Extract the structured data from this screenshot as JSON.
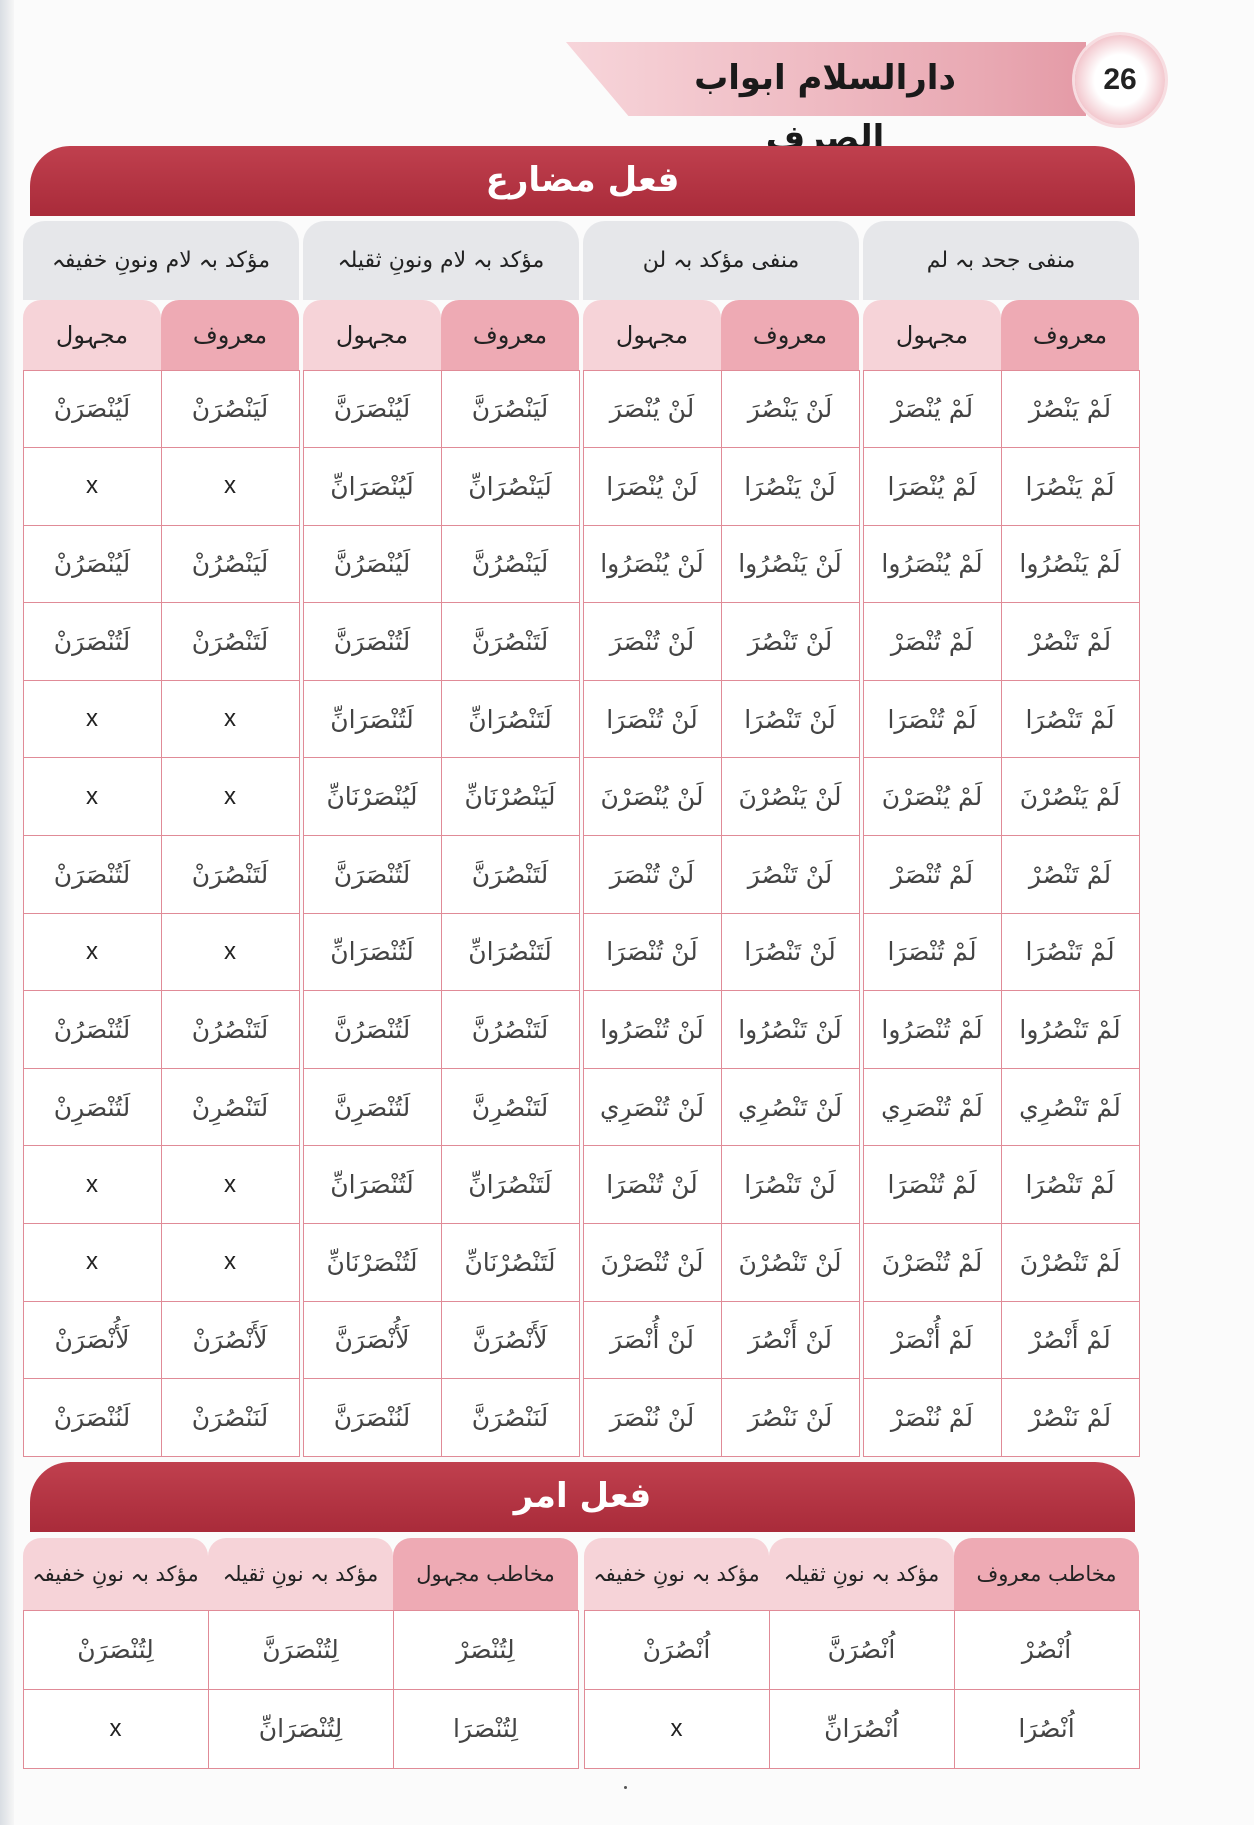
{
  "header": {
    "page_number": "26",
    "book_title": "دارالسلام ابواب الصرف"
  },
  "mudari": {
    "title": "فعل مضارع",
    "groups": [
      {
        "title": "منفی جحد بہ لم",
        "sub": [
          "معروف",
          "مجہول"
        ]
      },
      {
        "title": "منفی مؤکد بہ لن",
        "sub": [
          "معروف",
          "مجہول"
        ]
      },
      {
        "title": "مؤکد بہ لام ونونِ ثقیلہ",
        "sub": [
          "معروف",
          "مجہول"
        ]
      },
      {
        "title": "مؤکد بہ لام ونونِ خفیفہ",
        "sub": [
          "معروف",
          "مجہول"
        ]
      }
    ],
    "rows": [
      [
        "لَمْ يَنْصُرْ",
        "لَمْ يُنْصَرْ",
        "لَنْ يَنْصُرَ",
        "لَنْ يُنْصَرَ",
        "لَيَنْصُرَنَّ",
        "لَيُنْصَرَنَّ",
        "لَيَنْصُرَنْ",
        "لَيُنْصَرَنْ"
      ],
      [
        "لَمْ يَنْصُرَا",
        "لَمْ يُنْصَرَا",
        "لَنْ يَنْصُرَا",
        "لَنْ يُنْصَرَا",
        "لَيَنْصُرَانِّ",
        "لَيُنْصَرَانِّ",
        "x",
        "x"
      ],
      [
        "لَمْ يَنْصُرُوا",
        "لَمْ يُنْصَرُوا",
        "لَنْ يَنْصُرُوا",
        "لَنْ يُنْصَرُوا",
        "لَيَنْصُرُنَّ",
        "لَيُنْصَرُنَّ",
        "لَيَنْصُرُنْ",
        "لَيُنْصَرُنْ"
      ],
      [
        "لَمْ تَنْصُرْ",
        "لَمْ تُنْصَرْ",
        "لَنْ تَنْصُرَ",
        "لَنْ تُنْصَرَ",
        "لَتَنْصُرَنَّ",
        "لَتُنْصَرَنَّ",
        "لَتَنْصُرَنْ",
        "لَتُنْصَرَنْ"
      ],
      [
        "لَمْ تَنْصُرَا",
        "لَمْ تُنْصَرَا",
        "لَنْ تَنْصُرَا",
        "لَنْ تُنْصَرَا",
        "لَتَنْصُرَانِّ",
        "لَتُنْصَرَانِّ",
        "x",
        "x"
      ],
      [
        "لَمْ يَنْصُرْنَ",
        "لَمْ يُنْصَرْنَ",
        "لَنْ يَنْصُرْنَ",
        "لَنْ يُنْصَرْنَ",
        "لَيَنْصُرْنَانِّ",
        "لَيُنْصَرْنَانِّ",
        "x",
        "x"
      ],
      [
        "لَمْ تَنْصُرْ",
        "لَمْ تُنْصَرْ",
        "لَنْ تَنْصُرَ",
        "لَنْ تُنْصَرَ",
        "لَتَنْصُرَنَّ",
        "لَتُنْصَرَنَّ",
        "لَتَنْصُرَنْ",
        "لَتُنْصَرَنْ"
      ],
      [
        "لَمْ تَنْصُرَا",
        "لَمْ تُنْصَرَا",
        "لَنْ تَنْصُرَا",
        "لَنْ تُنْصَرَا",
        "لَتَنْصُرَانِّ",
        "لَتُنْصَرَانِّ",
        "x",
        "x"
      ],
      [
        "لَمْ تَنْصُرُوا",
        "لَمْ تُنْصَرُوا",
        "لَنْ تَنْصُرُوا",
        "لَنْ تُنْصَرُوا",
        "لَتَنْصُرُنَّ",
        "لَتُنْصَرُنَّ",
        "لَتَنْصُرُنْ",
        "لَتُنْصَرُنْ"
      ],
      [
        "لَمْ تَنْصُرِي",
        "لَمْ تُنْصَرِي",
        "لَنْ تَنْصُرِي",
        "لَنْ تُنْصَرِي",
        "لَتَنْصُرِنَّ",
        "لَتُنْصَرِنَّ",
        "لَتَنْصُرِنْ",
        "لَتُنْصَرِنْ"
      ],
      [
        "لَمْ تَنْصُرَا",
        "لَمْ تُنْصَرَا",
        "لَنْ تَنْصُرَا",
        "لَنْ تُنْصَرَا",
        "لَتَنْصُرَانِّ",
        "لَتُنْصَرَانِّ",
        "x",
        "x"
      ],
      [
        "لَمْ تَنْصُرْنَ",
        "لَمْ تُنْصَرْنَ",
        "لَنْ تَنْصُرْنَ",
        "لَنْ تُنْصَرْنَ",
        "لَتَنْصُرْنَانِّ",
        "لَتُنْصَرْنَانِّ",
        "x",
        "x"
      ],
      [
        "لَمْ أَنْصُرْ",
        "لَمْ أُنْصَرْ",
        "لَنْ أَنْصُرَ",
        "لَنْ أُنْصَرَ",
        "لَأَنْصُرَنَّ",
        "لَأُنْصَرَنَّ",
        "لَأَنْصُرَنْ",
        "لَأُنْصَرَنْ"
      ],
      [
        "لَمْ نَنْصُرْ",
        "لَمْ نُنْصَرْ",
        "لَنْ نَنْصُرَ",
        "لَنْ نُنْصَرَ",
        "لَنَنْصُرَنَّ",
        "لَنُنْصَرَنَّ",
        "لَنَنْصُرَنْ",
        "لَنُنْصَرَنْ"
      ]
    ]
  },
  "amr": {
    "title": "فعل امر",
    "headers": [
      "مخاطب معروف",
      "مؤکد بہ نونِ ثقیلہ",
      "مؤکد بہ نونِ خفیفہ",
      "مخاطب مجہول",
      "مؤکد بہ نونِ ثقیلہ",
      "مؤکد بہ نونِ خفیفہ"
    ],
    "rows": [
      [
        "اُنْصُرْ",
        "اُنْصُرَنَّ",
        "اُنْصُرَنْ",
        "لِتُنْصَرْ",
        "لِتُنْصَرَنَّ",
        "لِتُنْصَرَنْ"
      ],
      [
        "اُنْصُرَا",
        "اُنْصُرَانِّ",
        "x",
        "لِتُنْصَرَا",
        "لِتُنْصَرَانِّ",
        "x"
      ]
    ]
  },
  "colors": {
    "section_bar": "#b3313f",
    "header_tab": "#eeaab4",
    "group_tab": "#e6e7ea",
    "grid_line": "#e08b97"
  }
}
